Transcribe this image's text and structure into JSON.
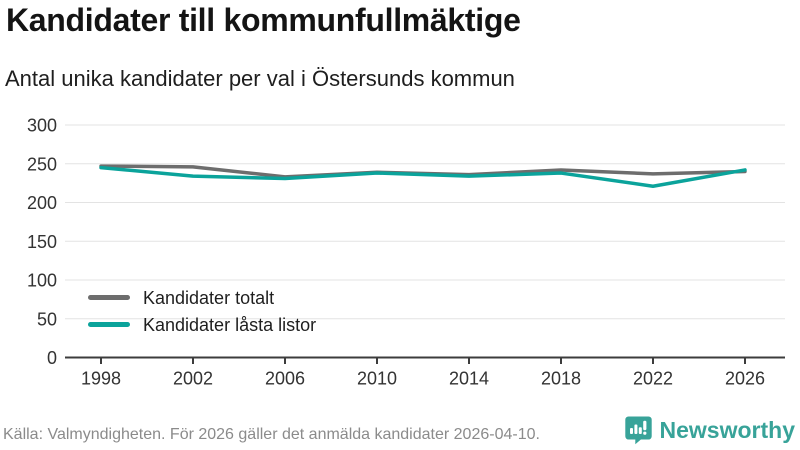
{
  "header": {
    "title": "Kandidater till kommunfullmäktige",
    "subtitle": "Antal unika kandidater per val i Östersunds kommun"
  },
  "chart_data": {
    "type": "line",
    "x": [
      1998,
      2002,
      2006,
      2010,
      2014,
      2018,
      2022,
      2026
    ],
    "series": [
      {
        "name": "Kandidater totalt",
        "color": "#6d6d6d",
        "values": [
          247,
          246,
          233,
          239,
          236,
          242,
          237,
          240
        ]
      },
      {
        "name": "Kandidater låsta listor",
        "color": "#0ba39b",
        "values": [
          245,
          234,
          231,
          238,
          234,
          238,
          221,
          242
        ]
      }
    ],
    "ylim": [
      0,
      300
    ],
    "yticks": [
      0,
      50,
      100,
      150,
      200,
      250,
      300
    ],
    "grid": "horizontal",
    "legend_position": "inside-bottom-left",
    "title": "Kandidater till kommunfullmäktige",
    "xlabel": "",
    "ylabel": ""
  },
  "footer": {
    "source": "Källa: Valmyndigheten. För 2026 gäller det anmälda kandidater 2026-04-10.",
    "brand": "Newsworthy",
    "brand_color": "#38a399",
    "brand_icon": "newsworthy-speech-bubble-bars-icon"
  },
  "colors": {
    "background": "#ffffff",
    "axis": "#3c3c3c",
    "grid": "#e3e3e3",
    "tick_label": "#333333",
    "title_text": "#141414",
    "subtitle_text": "#1e1e1e",
    "source_text": "#8b8b8b"
  }
}
